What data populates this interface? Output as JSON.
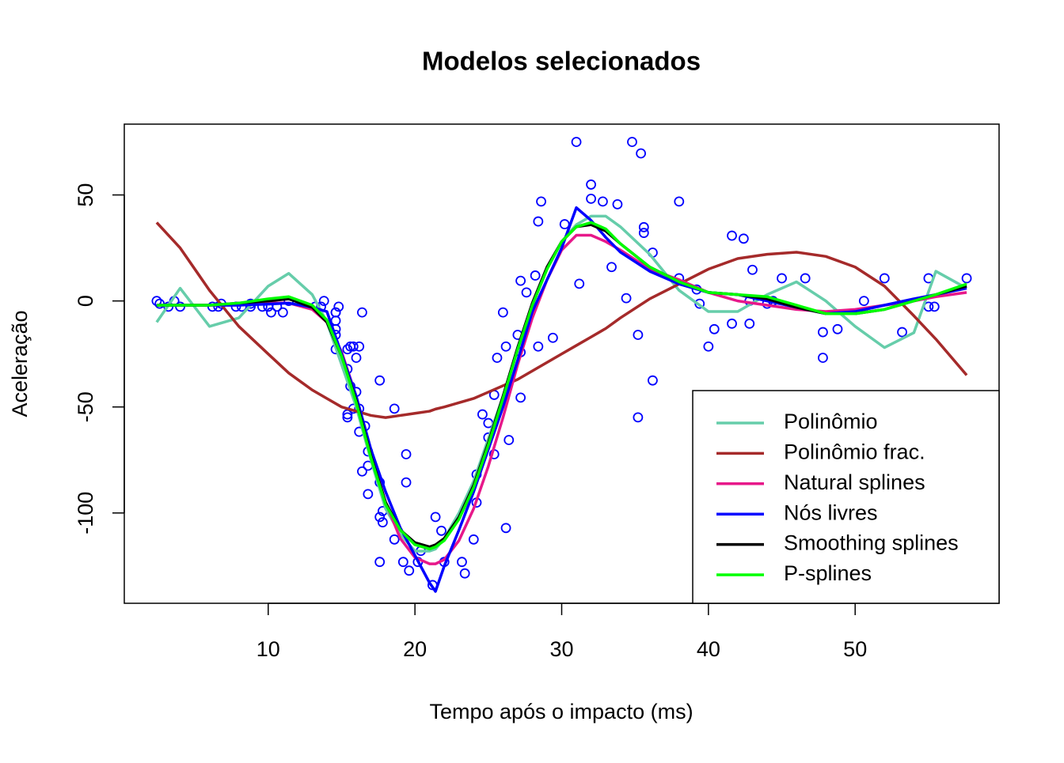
{
  "chart_data": {
    "type": "scatter",
    "title": "Modelos selecionados",
    "x_label": "Tempo após o impacto (ms)",
    "y_label": "Aceleração",
    "xlim": [
      0.192,
      59.808
    ],
    "ylim": [
      -142.6,
      83.4
    ],
    "xticks": [
      10,
      20,
      30,
      40,
      50
    ],
    "yticks": [
      -100,
      -50,
      0,
      50
    ],
    "color": "#0000ff",
    "x": [
      2.4,
      2.6,
      3.2,
      3.6,
      4.0,
      6.2,
      6.6,
      6.8,
      7.8,
      8.2,
      8.8,
      8.8,
      9.6,
      10.0,
      10.2,
      10.6,
      11.0,
      11.4,
      13.2,
      13.6,
      13.8,
      14.6,
      14.6,
      14.6,
      14.6,
      14.6,
      14.6,
      14.8,
      15.4,
      15.4,
      15.4,
      15.4,
      15.6,
      15.6,
      15.8,
      15.8,
      16.0,
      16.0,
      16.2,
      16.2,
      16.2,
      16.4,
      16.4,
      16.6,
      16.8,
      16.8,
      16.8,
      17.6,
      17.6,
      17.6,
      17.6,
      17.8,
      17.8,
      18.6,
      18.6,
      19.2,
      19.4,
      19.4,
      19.6,
      20.2,
      20.4,
      21.2,
      21.4,
      21.8,
      22.0,
      23.2,
      23.4,
      24.0,
      24.2,
      24.2,
      24.6,
      25.0,
      25.0,
      25.4,
      25.4,
      25.6,
      26.0,
      26.2,
      26.2,
      26.4,
      27.0,
      27.2,
      27.2,
      27.2,
      27.6,
      28.2,
      28.4,
      28.4,
      28.6,
      29.4,
      30.2,
      31.0,
      31.2,
      32.0,
      32.0,
      32.8,
      33.4,
      33.8,
      34.4,
      34.8,
      35.2,
      35.2,
      35.4,
      35.6,
      35.6,
      36.2,
      36.2,
      38.0,
      38.0,
      39.2,
      39.4,
      40.0,
      40.4,
      41.6,
      41.6,
      42.4,
      42.8,
      42.8,
      43.0,
      44.0,
      44.4,
      45.0,
      46.6,
      47.8,
      47.8,
      48.8,
      50.6,
      52.0,
      53.2,
      55.0,
      55.0,
      55.4,
      57.6
    ],
    "values": [
      0.0,
      -1.3,
      -2.7,
      0.0,
      -2.7,
      -2.7,
      -2.7,
      -1.3,
      -2.7,
      -2.7,
      -1.3,
      -2.7,
      -2.7,
      -2.7,
      -5.4,
      -2.7,
      -5.4,
      0.0,
      -2.7,
      -2.7,
      0.0,
      -13.3,
      -5.4,
      -5.4,
      -9.3,
      -16.0,
      -22.8,
      -2.7,
      -22.8,
      -32.1,
      -53.5,
      -54.9,
      -40.2,
      -21.5,
      -21.5,
      -50.8,
      -42.9,
      -26.8,
      -21.5,
      -50.8,
      -61.7,
      -5.4,
      -80.4,
      -59.0,
      -71.0,
      -91.1,
      -77.7,
      -37.5,
      -85.6,
      -123.1,
      -101.9,
      -99.1,
      -104.4,
      -112.5,
      -50.8,
      -123.1,
      -85.6,
      -72.3,
      -127.2,
      -123.1,
      -117.9,
      -134.0,
      -101.9,
      -108.4,
      -123.1,
      -123.1,
      -128.5,
      -112.5,
      -95.1,
      -81.8,
      -53.5,
      -64.4,
      -57.6,
      -72.3,
      -44.3,
      -26.8,
      -5.4,
      -107.1,
      -21.5,
      -65.6,
      -16.0,
      -45.6,
      -24.2,
      9.5,
      4.0,
      12.0,
      -21.5,
      37.5,
      46.9,
      -17.4,
      36.2,
      75.0,
      8.1,
      54.9,
      48.2,
      46.9,
      16.0,
      45.6,
      1.3,
      75.0,
      -16.0,
      -54.9,
      69.6,
      34.8,
      32.1,
      -37.5,
      22.8,
      46.9,
      10.7,
      5.4,
      -1.3,
      -21.5,
      -13.3,
      30.8,
      -10.7,
      29.4,
      0.0,
      -10.7,
      14.7,
      -1.3,
      0.0,
      10.7,
      10.7,
      -26.8,
      -14.7,
      -13.3,
      0.0,
      10.7,
      -14.7,
      -2.7,
      10.7,
      -2.7,
      10.7
    ],
    "legend": "bottom-right",
    "lines": {
      "x": [
        2.4,
        4,
        6,
        8,
        10,
        11.4,
        13,
        14,
        15,
        16,
        17,
        18,
        19,
        20,
        21,
        21.4,
        22,
        23,
        24,
        25,
        26,
        27,
        28,
        29,
        30,
        31,
        32,
        33,
        34,
        36,
        38,
        40,
        42,
        44,
        46,
        48,
        50,
        52,
        54,
        55.5,
        57.6
      ],
      "series": [
        {
          "name": "Polinômio",
          "color": "#66cdaa",
          "values": [
            -10,
            6,
            -12,
            -8,
            7,
            13,
            3,
            -10,
            -30,
            -50,
            -75,
            -98,
            -110,
            -118,
            -118,
            -117,
            -112,
            -100,
            -85,
            -65,
            -45,
            -22,
            -2,
            15,
            28,
            36,
            40,
            40,
            35,
            22,
            5,
            -5,
            -5,
            3,
            9,
            0,
            -12,
            -22,
            -15,
            14,
            6
          ]
        },
        {
          "name": "Polinômio frac.",
          "color": "#a52a2a",
          "values": [
            37,
            25,
            5,
            -12,
            -25,
            -34,
            -42,
            -46,
            -50,
            -52,
            -54,
            -55,
            -54,
            -53,
            -52,
            -51,
            -50,
            -48,
            -46,
            -43,
            -40,
            -37,
            -33,
            -29,
            -25,
            -21,
            -17,
            -13,
            -8,
            1,
            8,
            15,
            20,
            22,
            23,
            21,
            16,
            7,
            -7,
            -18,
            -35
          ]
        },
        {
          "name": "Natural splines",
          "color": "#e7188a",
          "values": [
            -2,
            -2,
            -2,
            -2,
            -1,
            -1,
            -4,
            -10,
            -24,
            -45,
            -72,
            -95,
            -112,
            -121,
            -124,
            -124,
            -122,
            -113,
            -98,
            -78,
            -55,
            -30,
            -8,
            10,
            24,
            31,
            31,
            28,
            24,
            15,
            10,
            4,
            0,
            -2,
            -4,
            -5,
            -4,
            -2,
            0,
            2,
            4
          ]
        },
        {
          "name": "Nós livres",
          "color": "#0000ff",
          "values": [
            -2,
            -2,
            -2,
            -2,
            -1.5,
            -1,
            -3,
            -5,
            -25,
            -45,
            -70,
            -90,
            -107,
            -120,
            -133,
            -137,
            -125,
            -108,
            -90,
            -70,
            -50,
            -28,
            -5,
            10,
            25,
            44,
            38,
            30,
            23,
            14,
            8,
            4,
            3,
            0,
            -3,
            -6,
            -5,
            -2,
            1,
            3,
            6
          ]
        },
        {
          "name": "Smoothing splines",
          "color": "#000000",
          "values": [
            -2,
            -2,
            -2,
            -1,
            0,
            1,
            -3,
            -10,
            -26,
            -47,
            -73,
            -95,
            -108,
            -114,
            -116,
            -115,
            -112,
            -102,
            -87,
            -67,
            -45,
            -22,
            -1,
            16,
            28,
            35,
            36,
            33,
            27,
            16,
            9,
            4,
            3,
            1,
            -3,
            -6,
            -6,
            -4,
            0,
            3,
            7
          ]
        },
        {
          "name": "P-splines",
          "color": "#00ff00",
          "values": [
            -2,
            -2,
            -2,
            -1,
            1,
            2,
            -2,
            -9,
            -26,
            -48,
            -74,
            -96,
            -108,
            -115,
            -117,
            -116,
            -113,
            -103,
            -88,
            -68,
            -46,
            -23,
            -2,
            15,
            28,
            35,
            37,
            34,
            27,
            16,
            9,
            4,
            3,
            2,
            -2,
            -6,
            -6,
            -4,
            0,
            3,
            8
          ]
        }
      ]
    }
  }
}
